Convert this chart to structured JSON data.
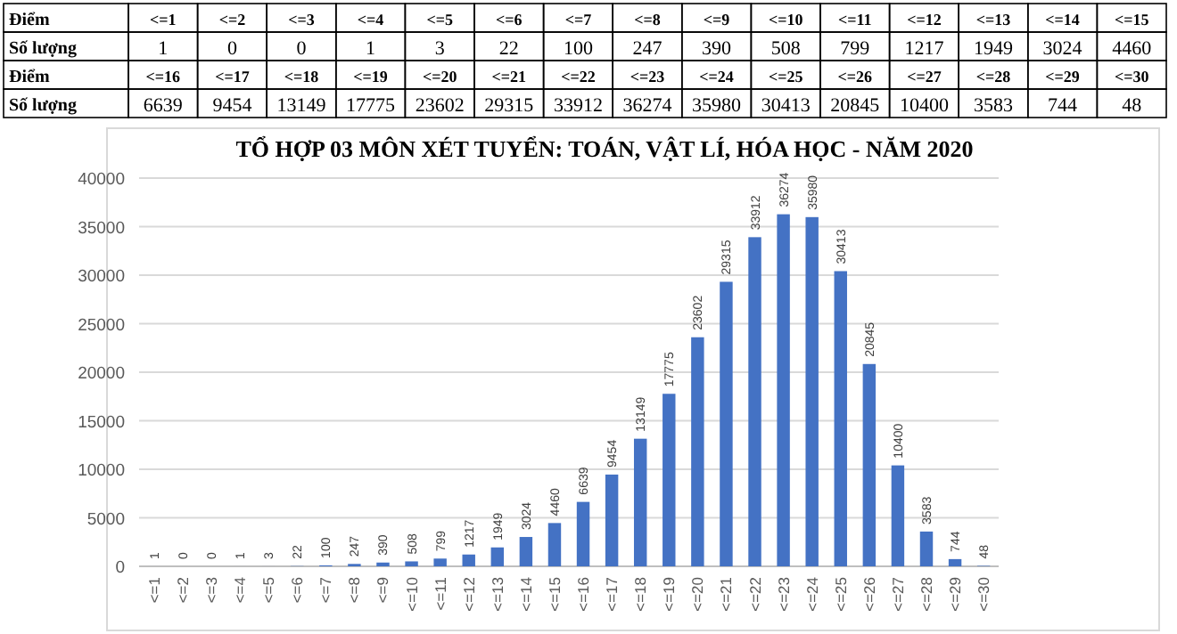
{
  "chart_data": [
    {
      "type": "other",
      "categories": [
        "<=1",
        "<=2",
        "<=3",
        "<=4",
        "<=5",
        "<=6",
        "<=7",
        "<=8",
        "<=9",
        "<=10",
        "<=11",
        "<=12",
        "<=13",
        "<=14",
        "<=15",
        "<=16",
        "<=17",
        "<=18",
        "<=19",
        "<=20",
        "<=21",
        "<=22",
        "<=23",
        "<=24",
        "<=25",
        "<=26",
        "<=27",
        "<=28",
        "<=29",
        "<=30"
      ],
      "values": [
        1,
        0,
        0,
        1,
        3,
        22,
        100,
        247,
        390,
        508,
        799,
        1217,
        1949,
        3024,
        4460,
        6639,
        9454,
        13149,
        17775,
        23602,
        29315,
        33912,
        36274,
        35980,
        30413,
        20845,
        10400,
        3583,
        744,
        48
      ],
      "data_labels": true,
      "annotations": [
        "Điểm",
        "Số lượng"
      ]
    },
    {
      "type": "bar",
      "title": "TỔ HỢP 03 MÔN XÉT TUYỂN: TOÁN, VẬT LÍ, HÓA HỌC - NĂM 2020",
      "categories": [
        "<=1",
        "<=2",
        "<=3",
        "<=4",
        "<=5",
        "<=6",
        "<=7",
        "<=8",
        "<=9",
        "<=10",
        "<=11",
        "<=12",
        "<=13",
        "<=14",
        "<=15",
        "<=16",
        "<=17",
        "<=18",
        "<=19",
        "<=20",
        "<=21",
        "<=22",
        "<=23",
        "<=24",
        "<=25",
        "<=26",
        "<=27",
        "<=28",
        "<=29",
        "<=30"
      ],
      "values": [
        1,
        0,
        0,
        1,
        3,
        22,
        100,
        247,
        390,
        508,
        799,
        1217,
        1949,
        3024,
        4460,
        6639,
        9454,
        13149,
        17775,
        23602,
        29315,
        33912,
        36274,
        35980,
        30413,
        20845,
        10400,
        3583,
        744,
        48
      ],
      "color": "#4472c4",
      "ylim": [
        0,
        40000
      ],
      "yticks": [
        0,
        5000,
        10000,
        15000,
        20000,
        25000,
        30000,
        35000,
        40000
      ],
      "grid": "y",
      "data_labels": true
    }
  ]
}
